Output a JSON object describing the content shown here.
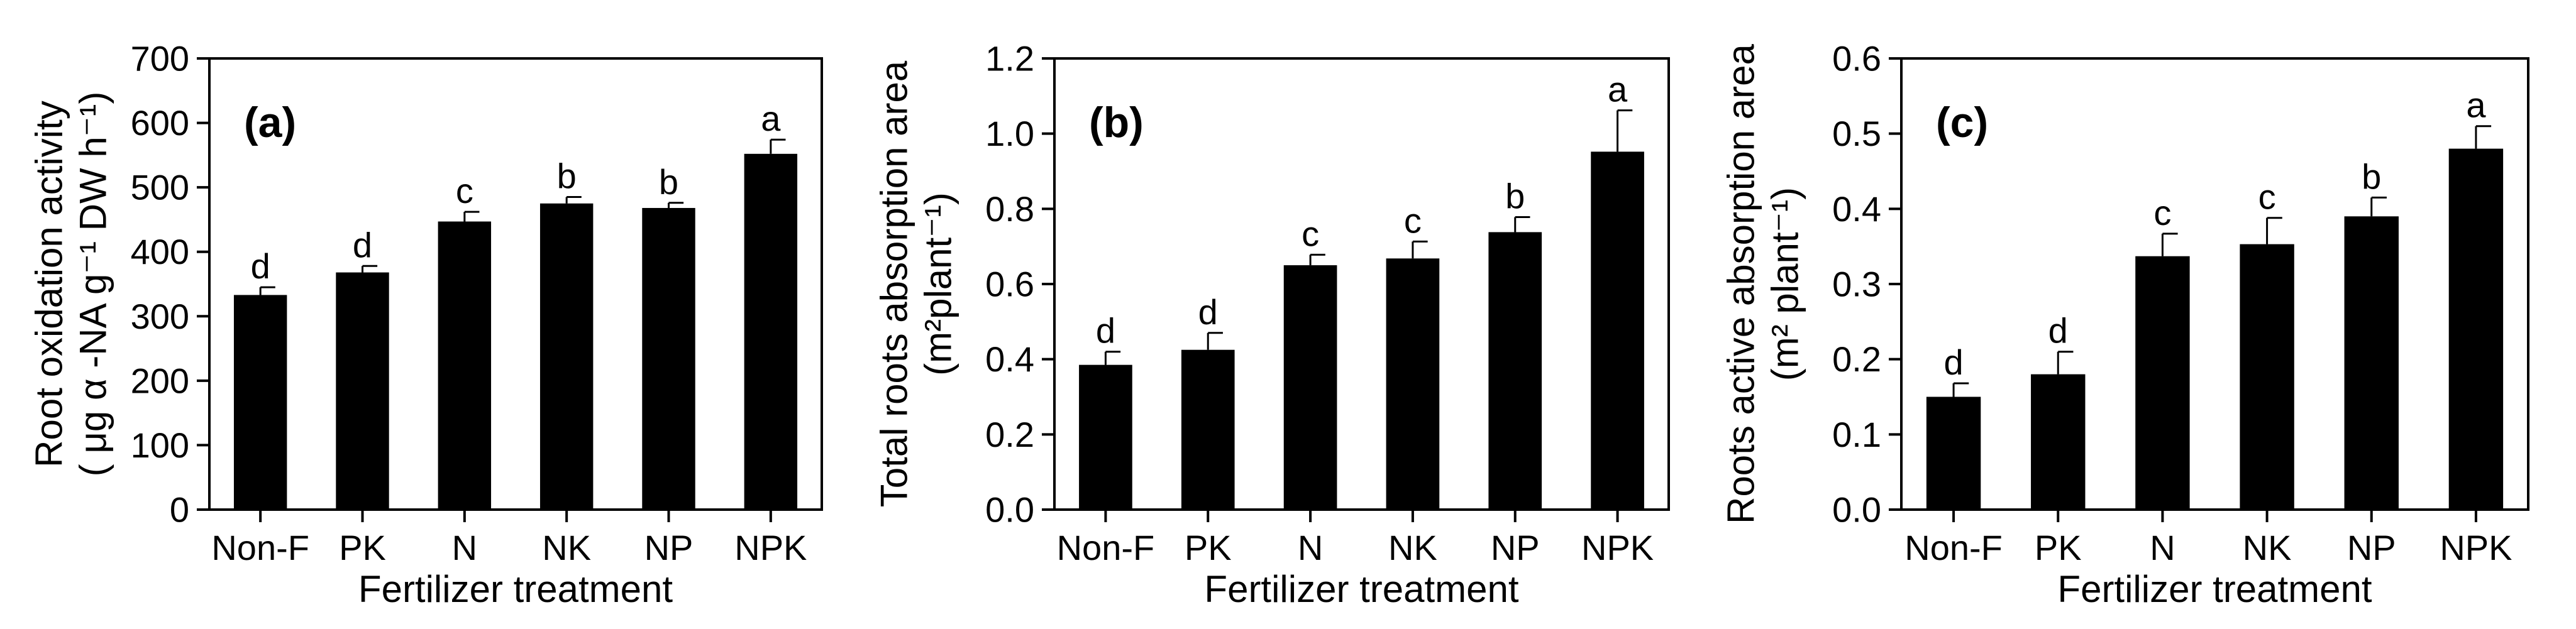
{
  "figure": {
    "caption_visible": false
  },
  "chart_data": [
    {
      "type": "bar",
      "panel_label": "(a)",
      "title": "",
      "categories": [
        "Non-F",
        "PK",
        "N",
        "NK",
        "NP",
        "NPK"
      ],
      "series": [
        {
          "name": "Root oxidation activity",
          "values": [
            333,
            368,
            447,
            475,
            468,
            552
          ],
          "errors": [
            12,
            10,
            15,
            10,
            8,
            22
          ]
        }
      ],
      "significance": [
        "d",
        "d",
        "c",
        "b",
        "b",
        "a"
      ],
      "xlabel": "Fertilizer treatment",
      "ylabel_lines": [
        "Root oxidation activity",
        "( μg α -NA g⁻¹ DW h⁻¹)"
      ],
      "ylim": [
        0,
        700
      ],
      "yticks": [
        0,
        100,
        200,
        300,
        400,
        500,
        600,
        700
      ],
      "ytick_labels": [
        "0",
        "100",
        "200",
        "300",
        "400",
        "500",
        "600",
        "700"
      ],
      "grid": false,
      "bar_color": "#000000"
    },
    {
      "type": "bar",
      "panel_label": "(b)",
      "title": "",
      "categories": [
        "Non-F",
        "PK",
        "N",
        "NK",
        "NP",
        "NPK"
      ],
      "series": [
        {
          "name": "Total roots absorption area",
          "values": [
            0.385,
            0.425,
            0.65,
            0.668,
            0.738,
            0.952
          ],
          "errors": [
            0.035,
            0.045,
            0.028,
            0.045,
            0.04,
            0.11
          ]
        }
      ],
      "significance": [
        "d",
        "d",
        "c",
        "c",
        "b",
        "a"
      ],
      "xlabel": "Fertilizer treatment",
      "ylabel_lines": [
        "Total roots absorption area",
        "(m²plant⁻¹)"
      ],
      "ylim": [
        0,
        1.2
      ],
      "yticks": [
        0,
        0.2,
        0.4,
        0.6,
        0.8,
        1.0,
        1.2
      ],
      "ytick_labels": [
        "0.0",
        "0.2",
        "0.4",
        "0.6",
        "0.8",
        "1.0",
        "1.2"
      ],
      "grid": false,
      "bar_color": "#000000"
    },
    {
      "type": "bar",
      "panel_label": "(c)",
      "title": "",
      "categories": [
        "Non-F",
        "PK",
        "N",
        "NK",
        "NP",
        "NPK"
      ],
      "series": [
        {
          "name": "Roots active absorption area",
          "values": [
            0.15,
            0.18,
            0.337,
            0.353,
            0.39,
            0.48
          ],
          "errors": [
            0.018,
            0.03,
            0.03,
            0.035,
            0.025,
            0.03
          ]
        }
      ],
      "significance": [
        "d",
        "d",
        "c",
        "c",
        "b",
        "a"
      ],
      "xlabel": "Fertilizer treatment",
      "ylabel_lines": [
        "Roots active absorption area",
        "(m² plant⁻¹)"
      ],
      "ylim": [
        0,
        0.6
      ],
      "yticks": [
        0,
        0.1,
        0.2,
        0.3,
        0.4,
        0.5,
        0.6
      ],
      "ytick_labels": [
        "0.0",
        "0.1",
        "0.2",
        "0.3",
        "0.4",
        "0.5",
        "0.6"
      ],
      "grid": false,
      "bar_color": "#000000"
    }
  ]
}
